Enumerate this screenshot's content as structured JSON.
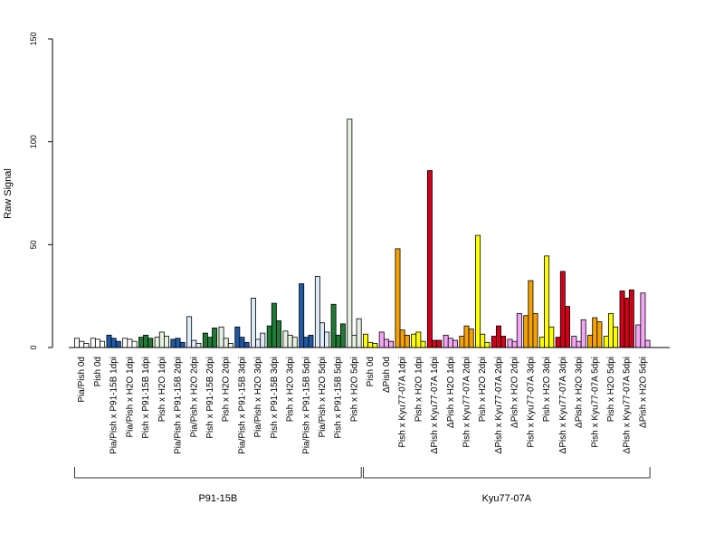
{
  "chart_data": {
    "type": "bar",
    "ylabel": "Raw Signal",
    "ylim": [
      0,
      150
    ],
    "yticks": [
      0,
      50,
      100,
      150
    ],
    "colors": {
      "pia": "#ffffff",
      "p91_blue": "#1f5aa6",
      "p91_green": "#1f7a35",
      "p91_lightblue": "#dce9f6",
      "p91_lightgreen": "#e6f2e0",
      "kyu_yellow": "#ffff00",
      "kyu_pink": "#f4a6f4",
      "kyu_orange": "#f5a200",
      "kyu_red": "#d0001a"
    },
    "categories": [
      "Pia/Pish 0d",
      "Pish 0d",
      "Pia/Pish x P91-15B 1dpi",
      "Pia/Pish x H2O 1dpi",
      "Pish x P91-15B 1dpi",
      "Pish x H2O 1dpi",
      "Pia/Pish x P91-15B 2dpi",
      "Pia/Pish x H2O 2dpi",
      "Pish x P91-15B 2dpi",
      "Pish x H2O 2dpi",
      "Pia/Pish x P91-15B 3dpi",
      "Pia/Pish x H2O 3dpi",
      "Pish x P91-15B 3dpi",
      "Pish x H2O 3dpi",
      "Pia/Pish x P91-15B 5dpi",
      "Pia/Pish x H2O 5dpi",
      "Pish x P91-15B 5dpi",
      "Pish x H2O 5dpi",
      "Pish 0d",
      "ΔPish 0d",
      "Pish x Kyu77-07A 1dpi",
      "Pish x H2O 1dpi",
      "ΔPish x Kyu77-07A 1dpi",
      "ΔPish x H2O 1dpi",
      "Pish x Kyu77-07A 2dpi",
      "Pish x H2O 2dpi",
      "ΔPish x Kyu77-07A 2dpi",
      "ΔPish x H2O 2dpi",
      "Pish x Kyu77-07A 3dpi",
      "Pish x H2O 3dpi",
      "ΔPish x Kyu77-07A 3dpi",
      "ΔPish x H2O 3dpi",
      "Pish x Kyu77-07A 5dpi",
      "Pish x H2O 5dpi",
      "ΔPish x Kyu77-07A 5dpi",
      "ΔPish x H2O 5dpi"
    ],
    "groups": [
      {
        "label": "P91-15B",
        "start": 0,
        "end": 17
      },
      {
        "label": "Kyu77-07A",
        "start": 18,
        "end": 35
      }
    ],
    "values": [
      [
        4.5,
        3,
        2
      ],
      [
        4.5,
        4,
        3
      ],
      [
        6,
        4.5,
        3
      ],
      [
        4.5,
        4,
        3
      ],
      [
        5,
        6,
        4.5
      ],
      [
        5,
        7.5,
        5.5
      ],
      [
        4,
        4.5,
        2.5
      ],
      [
        15,
        3.5,
        2
      ],
      [
        7,
        5,
        9.5
      ],
      [
        10,
        4.5,
        2
      ],
      [
        10,
        5,
        2.5
      ],
      [
        24,
        4,
        7
      ],
      [
        10.5,
        21.5,
        13
      ],
      [
        8,
        6,
        5
      ],
      [
        31,
        5,
        6
      ],
      [
        34.5,
        12,
        7.5
      ],
      [
        21,
        6,
        11.5
      ],
      [
        111,
        6,
        14
      ]
    ],
    "values_kyu": [
      [
        6.5,
        2.5,
        2
      ],
      [
        7.5,
        4,
        3
      ],
      [
        48,
        8.5,
        6
      ],
      [
        6.5,
        7.5,
        3
      ],
      [
        86,
        3.5,
        3.5
      ],
      [
        6,
        4.5,
        3.5
      ],
      [
        5.5,
        10.5,
        9
      ],
      [
        54.5,
        6.5,
        2.5
      ],
      [
        5.5,
        10.5,
        5.5
      ],
      [
        4,
        3,
        16.5
      ],
      [
        15.5,
        32.5,
        16.5
      ],
      [
        5,
        44.5,
        10
      ],
      [
        5,
        37,
        20
      ],
      [
        5.5,
        3,
        13.5
      ],
      [
        6,
        14.5,
        12.5
      ],
      [
        5.5,
        16.5,
        10
      ],
      [
        27.5,
        24,
        28
      ],
      [
        11,
        26.5,
        3.5
      ]
    ],
    "bar_colors": [
      "pia",
      "pia",
      "p91_blue",
      "pia",
      "p91_green",
      "p91_lightgreen",
      "p91_blue",
      "p91_lightblue",
      "p91_green",
      "p91_lightgreen",
      "p91_blue",
      "p91_lightblue",
      "p91_green",
      "p91_lightgreen",
      "p91_blue",
      "p91_lightblue",
      "p91_green",
      "p91_lightgreen",
      "kyu_yellow",
      "kyu_pink",
      "kyu_orange",
      "kyu_yellow",
      "kyu_red",
      "kyu_pink",
      "kyu_orange",
      "kyu_yellow",
      "kyu_red",
      "kyu_pink",
      "kyu_orange",
      "kyu_yellow",
      "kyu_red",
      "kyu_pink",
      "kyu_orange",
      "kyu_yellow",
      "kyu_red",
      "kyu_pink"
    ]
  }
}
